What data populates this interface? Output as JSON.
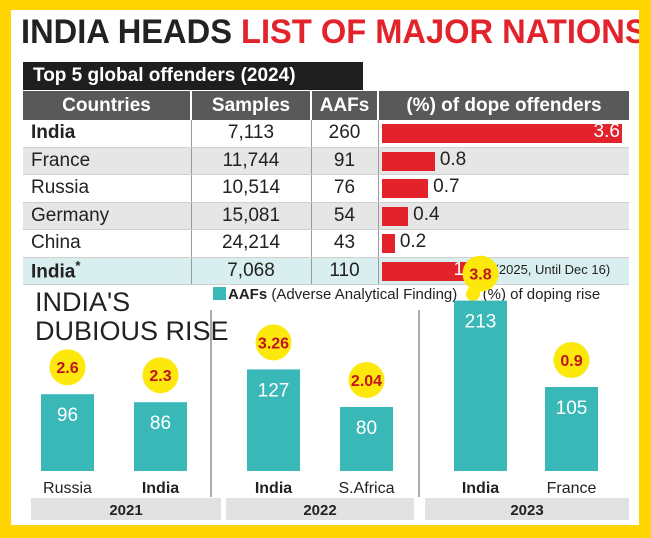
{
  "title": {
    "part1": "INDIA HEADS",
    "part2": "LIST OF MAJOR NATIONS"
  },
  "table": {
    "heading": "Top 5 global offenders (2024)",
    "columns": [
      "Countries",
      "Samples",
      "AAFs",
      "(%) of dope offenders"
    ],
    "rows": [
      {
        "country": "India",
        "samples": "7,113",
        "aafs": "260",
        "percent": 3.6,
        "label": "3.6"
      },
      {
        "country": "France",
        "samples": "11,744",
        "aafs": "91",
        "percent": 0.8,
        "label": "0.8"
      },
      {
        "country": "Russia",
        "samples": "10,514",
        "aafs": "76",
        "percent": 0.7,
        "label": "0.7"
      },
      {
        "country": "Germany",
        "samples": "15,081",
        "aafs": "54",
        "percent": 0.4,
        "label": "0.4"
      },
      {
        "country": "China",
        "samples": "24,214",
        "aafs": "43",
        "percent": 0.2,
        "label": "0.2"
      },
      {
        "country": "India",
        "country_mark": "*",
        "samples": "7,068",
        "aafs": "110",
        "percent": 1.5,
        "label": "1.5",
        "note": "*(2025, Until Dec 16)"
      }
    ]
  },
  "rise": {
    "heading_line1": "INDIA'S",
    "heading_line2": "DUBIOUS RISE",
    "legend_aafs_bold": "AAFs",
    "legend_aafs_rest": " (Adverse Analytical Finding)",
    "legend_rise": "(%) of doping rise"
  },
  "chart_data": {
    "type": "bar",
    "series": [
      {
        "name": "AAFs (Adverse Analytical Finding)"
      },
      {
        "name": "(%) of doping rise"
      }
    ],
    "groups": [
      {
        "year": "2021",
        "bars": [
          {
            "country": "Russia",
            "aafs": 96,
            "rise": "2.6"
          },
          {
            "country": "India",
            "aafs": 86,
            "rise": "2.3"
          }
        ]
      },
      {
        "year": "2022",
        "bars": [
          {
            "country": "India",
            "aafs": 127,
            "rise": "3.26"
          },
          {
            "country": "S.Africa",
            "aafs": 80,
            "rise": "2.04"
          }
        ]
      },
      {
        "year": "2023",
        "bars": [
          {
            "country": "India",
            "aafs": 213,
            "rise": "3.8"
          },
          {
            "country": "France",
            "aafs": 105,
            "rise": "0.9"
          }
        ]
      }
    ],
    "colors": {
      "bar": "#3ab7b7",
      "bubble": "#fce80a",
      "bubble_text": "#c0141e",
      "percent_bar": "#e3232b"
    }
  }
}
